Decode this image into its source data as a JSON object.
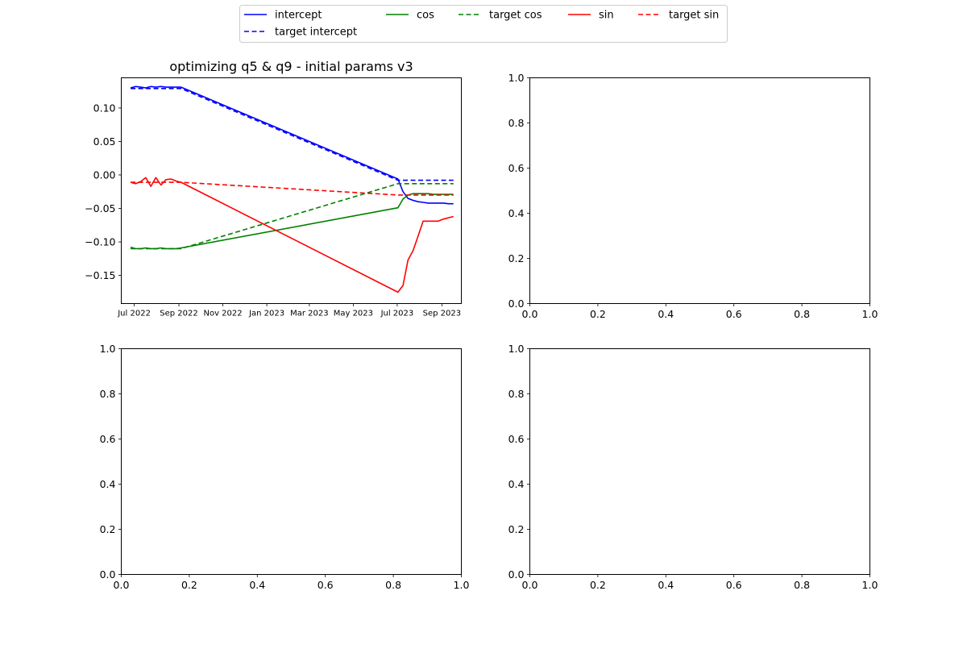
{
  "legend": {
    "placement": "top-center",
    "entries": [
      {
        "label": "intercept",
        "color": "#0000ff",
        "dash": "solid"
      },
      {
        "label": "target intercept",
        "color": "#0000ff",
        "dash": "dashed"
      },
      {
        "label": "cos",
        "color": "#008000",
        "dash": "solid"
      },
      {
        "label": "target cos",
        "color": "#008000",
        "dash": "dashed"
      },
      {
        "label": "sin",
        "color": "#ff0000",
        "dash": "solid"
      },
      {
        "label": "target sin",
        "color": "#ff0000",
        "dash": "dashed"
      }
    ]
  },
  "chart_data": [
    {
      "type": "line",
      "title": "optimizing q5 & q9 - initial params v3",
      "xlabel": "",
      "ylabel": "",
      "x_type": "date",
      "xlim": [
        "2022-06-13",
        "2023-09-28"
      ],
      "ylim": [
        -0.192,
        0.145
      ],
      "grid": false,
      "xticks": [
        {
          "label": "Jul 2022",
          "date": "2022-07-01"
        },
        {
          "label": "Sep 2022",
          "date": "2022-09-01"
        },
        {
          "label": "Nov 2022",
          "date": "2022-11-01"
        },
        {
          "label": "Jan 2023",
          "date": "2023-01-01"
        },
        {
          "label": "Mar 2023",
          "date": "2023-03-01"
        },
        {
          "label": "May 2023",
          "date": "2023-05-01"
        },
        {
          "label": "Jul 2023",
          "date": "2023-07-01"
        },
        {
          "label": "Sep 2023",
          "date": "2023-09-01"
        }
      ],
      "yticks": [
        {
          "label": "0.10",
          "value": 0.1
        },
        {
          "label": "0.05",
          "value": 0.05
        },
        {
          "label": "0.00",
          "value": 0.0
        },
        {
          "label": "−0.05",
          "value": -0.05
        },
        {
          "label": "−0.10",
          "value": -0.1
        },
        {
          "label": "−0.15",
          "value": -0.15
        }
      ],
      "series": [
        {
          "name": "intercept",
          "color": "#0000ff",
          "dash": "solid",
          "points": [
            [
              "2022-06-26",
              0.13
            ],
            [
              "2022-07-03",
              0.132
            ],
            [
              "2022-07-10",
              0.131
            ],
            [
              "2022-07-17",
              0.13
            ],
            [
              "2022-07-24",
              0.132
            ],
            [
              "2022-07-31",
              0.131
            ],
            [
              "2022-08-07",
              0.132
            ],
            [
              "2022-08-14",
              0.131
            ],
            [
              "2022-08-21",
              0.131
            ],
            [
              "2022-08-28",
              0.131
            ],
            [
              "2022-09-04",
              0.131
            ],
            [
              "2023-07-02",
              -0.006
            ],
            [
              "2023-07-09",
              -0.025
            ],
            [
              "2023-07-16",
              -0.035
            ],
            [
              "2023-07-23",
              -0.038
            ],
            [
              "2023-07-30",
              -0.04
            ],
            [
              "2023-08-06",
              -0.041
            ],
            [
              "2023-08-13",
              -0.042
            ],
            [
              "2023-08-20",
              -0.042
            ],
            [
              "2023-08-27",
              -0.042
            ],
            [
              "2023-09-03",
              -0.042
            ],
            [
              "2023-09-10",
              -0.043
            ],
            [
              "2023-09-17",
              -0.043
            ]
          ]
        },
        {
          "name": "target intercept",
          "color": "#0000ff",
          "dash": "dashed",
          "points": [
            [
              "2022-06-26",
              0.129
            ],
            [
              "2022-09-04",
              0.129
            ],
            [
              "2023-07-02",
              -0.008
            ],
            [
              "2023-09-17",
              -0.008
            ]
          ]
        },
        {
          "name": "cos",
          "color": "#008000",
          "dash": "solid",
          "points": [
            [
              "2022-06-26",
              -0.108
            ],
            [
              "2022-07-03",
              -0.11
            ],
            [
              "2022-07-10",
              -0.11
            ],
            [
              "2022-07-17",
              -0.109
            ],
            [
              "2022-07-24",
              -0.11
            ],
            [
              "2022-07-31",
              -0.11
            ],
            [
              "2022-08-07",
              -0.109
            ],
            [
              "2022-08-14",
              -0.11
            ],
            [
              "2022-08-21",
              -0.11
            ],
            [
              "2022-08-28",
              -0.11
            ],
            [
              "2022-09-04",
              -0.109
            ],
            [
              "2023-07-02",
              -0.049
            ],
            [
              "2023-07-09",
              -0.036
            ],
            [
              "2023-07-16",
              -0.03
            ],
            [
              "2023-07-23",
              -0.028
            ],
            [
              "2023-07-30",
              -0.028
            ],
            [
              "2023-08-06",
              -0.028
            ],
            [
              "2023-08-13",
              -0.028
            ],
            [
              "2023-08-20",
              -0.029
            ],
            [
              "2023-08-27",
              -0.029
            ],
            [
              "2023-09-03",
              -0.029
            ],
            [
              "2023-09-10",
              -0.029
            ],
            [
              "2023-09-17",
              -0.029
            ]
          ]
        },
        {
          "name": "target cos",
          "color": "#008000",
          "dash": "dashed",
          "points": [
            [
              "2022-06-26",
              -0.11
            ],
            [
              "2022-09-04",
              -0.11
            ],
            [
              "2023-07-02",
              -0.013
            ],
            [
              "2023-09-17",
              -0.013
            ]
          ]
        },
        {
          "name": "sin",
          "color": "#ff0000",
          "dash": "solid",
          "points": [
            [
              "2022-06-26",
              -0.011
            ],
            [
              "2022-07-03",
              -0.013
            ],
            [
              "2022-07-10",
              -0.01
            ],
            [
              "2022-07-17",
              -0.004
            ],
            [
              "2022-07-24",
              -0.017
            ],
            [
              "2022-07-31",
              -0.004
            ],
            [
              "2022-08-07",
              -0.015
            ],
            [
              "2022-08-14",
              -0.007
            ],
            [
              "2022-08-21",
              -0.006
            ],
            [
              "2022-08-28",
              -0.009
            ],
            [
              "2022-09-04",
              -0.011
            ],
            [
              "2023-07-02",
              -0.175
            ],
            [
              "2023-07-09",
              -0.165
            ],
            [
              "2023-07-16",
              -0.127
            ],
            [
              "2023-07-23",
              -0.113
            ],
            [
              "2023-07-30",
              -0.091
            ],
            [
              "2023-08-06",
              -0.069
            ],
            [
              "2023-08-13",
              -0.069
            ],
            [
              "2023-08-20",
              -0.069
            ],
            [
              "2023-08-27",
              -0.069
            ],
            [
              "2023-09-03",
              -0.066
            ],
            [
              "2023-09-10",
              -0.064
            ],
            [
              "2023-09-17",
              -0.062
            ]
          ]
        },
        {
          "name": "target sin",
          "color": "#ff0000",
          "dash": "dashed",
          "points": [
            [
              "2022-06-26",
              -0.011
            ],
            [
              "2022-09-04",
              -0.011
            ],
            [
              "2023-07-02",
              -0.03
            ],
            [
              "2023-09-17",
              -0.03
            ]
          ]
        }
      ]
    },
    {
      "type": "line",
      "title": "",
      "xlabel": "",
      "ylabel": "",
      "xlim": [
        0,
        1
      ],
      "ylim": [
        0,
        1
      ],
      "grid": false,
      "xticks": [
        "0.0",
        "0.2",
        "0.4",
        "0.6",
        "0.8",
        "1.0"
      ],
      "yticks": [
        "0.0",
        "0.2",
        "0.4",
        "0.6",
        "0.8",
        "1.0"
      ],
      "series": []
    },
    {
      "type": "line",
      "title": "",
      "xlabel": "",
      "ylabel": "",
      "xlim": [
        0,
        1
      ],
      "ylim": [
        0,
        1
      ],
      "grid": false,
      "xticks": [
        "0.0",
        "0.2",
        "0.4",
        "0.6",
        "0.8",
        "1.0"
      ],
      "yticks": [
        "0.0",
        "0.2",
        "0.4",
        "0.6",
        "0.8",
        "1.0"
      ],
      "series": []
    },
    {
      "type": "line",
      "title": "",
      "xlabel": "",
      "ylabel": "",
      "xlim": [
        0,
        1
      ],
      "ylim": [
        0,
        1
      ],
      "grid": false,
      "xticks": [
        "0.0",
        "0.2",
        "0.4",
        "0.6",
        "0.8",
        "1.0"
      ],
      "yticks": [
        "0.0",
        "0.2",
        "0.4",
        "0.6",
        "0.8",
        "1.0"
      ],
      "series": []
    }
  ]
}
